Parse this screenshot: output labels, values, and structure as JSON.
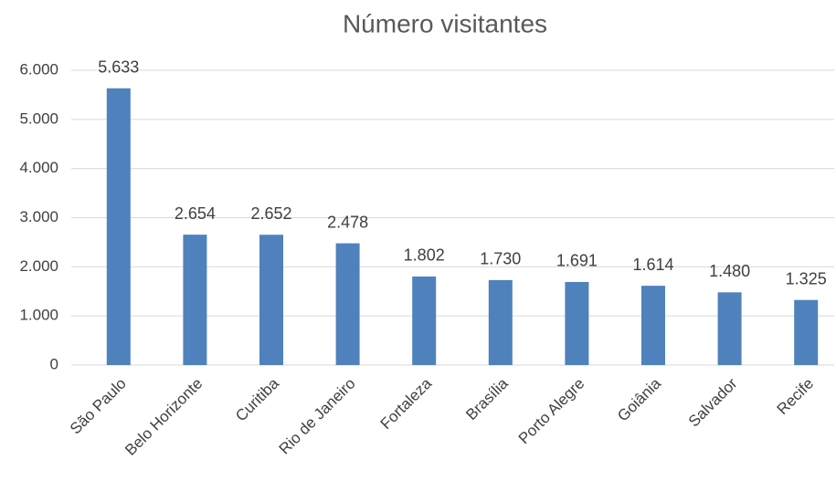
{
  "chart_data": {
    "type": "bar",
    "title": "Número visitantes",
    "categories": [
      "São Paulo",
      "Belo Horizonte",
      "Curitiba",
      "Rio de Janeiro",
      "Fortaleza",
      "Brasília",
      "Porto Alegre",
      "Goiânia",
      "Salvador",
      "Recife"
    ],
    "values": [
      5633,
      2654,
      2652,
      2478,
      1802,
      1730,
      1691,
      1614,
      1480,
      1325
    ],
    "value_labels": [
      "5.633",
      "2.654",
      "2.652",
      "2.478",
      "1.802",
      "1.730",
      "1.691",
      "1.614",
      "1.480",
      "1.325"
    ],
    "color": "#4f81bd",
    "ylim": [
      0,
      6000
    ],
    "yticks": [
      0,
      {
        "value": 1000,
        "label": "1.000"
      },
      {
        "value": 2000,
        "label": "2.000"
      },
      {
        "value": 3000,
        "label": "3.000"
      },
      {
        "value": 4000,
        "label": "4.000"
      },
      {
        "value": 5000,
        "label": "5.000"
      },
      {
        "value": 6000,
        "label": "6.000"
      }
    ],
    "grid": true
  }
}
